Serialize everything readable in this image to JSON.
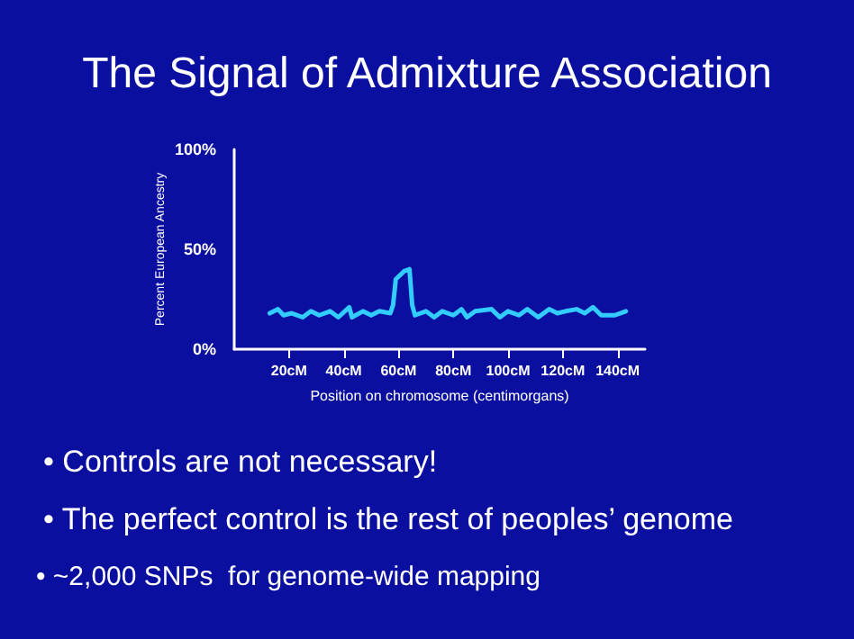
{
  "chart_data": {
    "type": "line",
    "title": "The Signal of Admixture Association",
    "xlabel": "Position on chromosome (centimorgans)",
    "ylabel": "Percent European Ancestry",
    "annotations": [
      "• Controls are not necessary!",
      "• The perfect control is the rest of peoples’ genome",
      "• ~2,000 SNPs  for genome-wide mapping"
    ],
    "series": [
      {
        "color": "#33ccff",
        "x": [
          13,
          16,
          18,
          21,
          25,
          28,
          31,
          35,
          38,
          42,
          43,
          47,
          50,
          53,
          57,
          58,
          59,
          62,
          64,
          65,
          66,
          70,
          73,
          76,
          80,
          83,
          85,
          88,
          94,
          97,
          100,
          104,
          107,
          111,
          115,
          118,
          121,
          125,
          128,
          131,
          134,
          139,
          143
        ],
        "values": [
          18,
          20,
          17,
          18,
          16,
          19,
          17,
          19,
          16,
          21,
          16,
          19,
          17,
          19,
          18,
          22,
          35,
          39,
          40,
          22,
          17,
          19,
          16,
          19,
          17,
          20,
          16,
          19,
          20,
          16,
          19,
          17,
          20,
          16,
          20,
          18,
          19,
          20,
          18,
          21,
          17,
          17,
          19
        ]
      }
    ],
    "xlim": [
      0,
      150
    ],
    "xticks": [
      {
        "value": 20,
        "label": "20cM"
      },
      {
        "value": 40,
        "label": "40cM"
      },
      {
        "value": 60,
        "label": "60cM"
      },
      {
        "value": 80,
        "label": "80cM"
      },
      {
        "value": 100,
        "label": "100cM"
      },
      {
        "value": 120,
        "label": "120cM"
      },
      {
        "value": 140,
        "label": "140cM"
      }
    ],
    "ylim": [
      0,
      100
    ],
    "yticks": [
      {
        "value": 0,
        "label": "0%"
      },
      {
        "value": 50,
        "label": "50%"
      },
      {
        "value": 100,
        "label": "100%"
      }
    ],
    "grid": false,
    "marker": "none",
    "line_style": "solid"
  }
}
